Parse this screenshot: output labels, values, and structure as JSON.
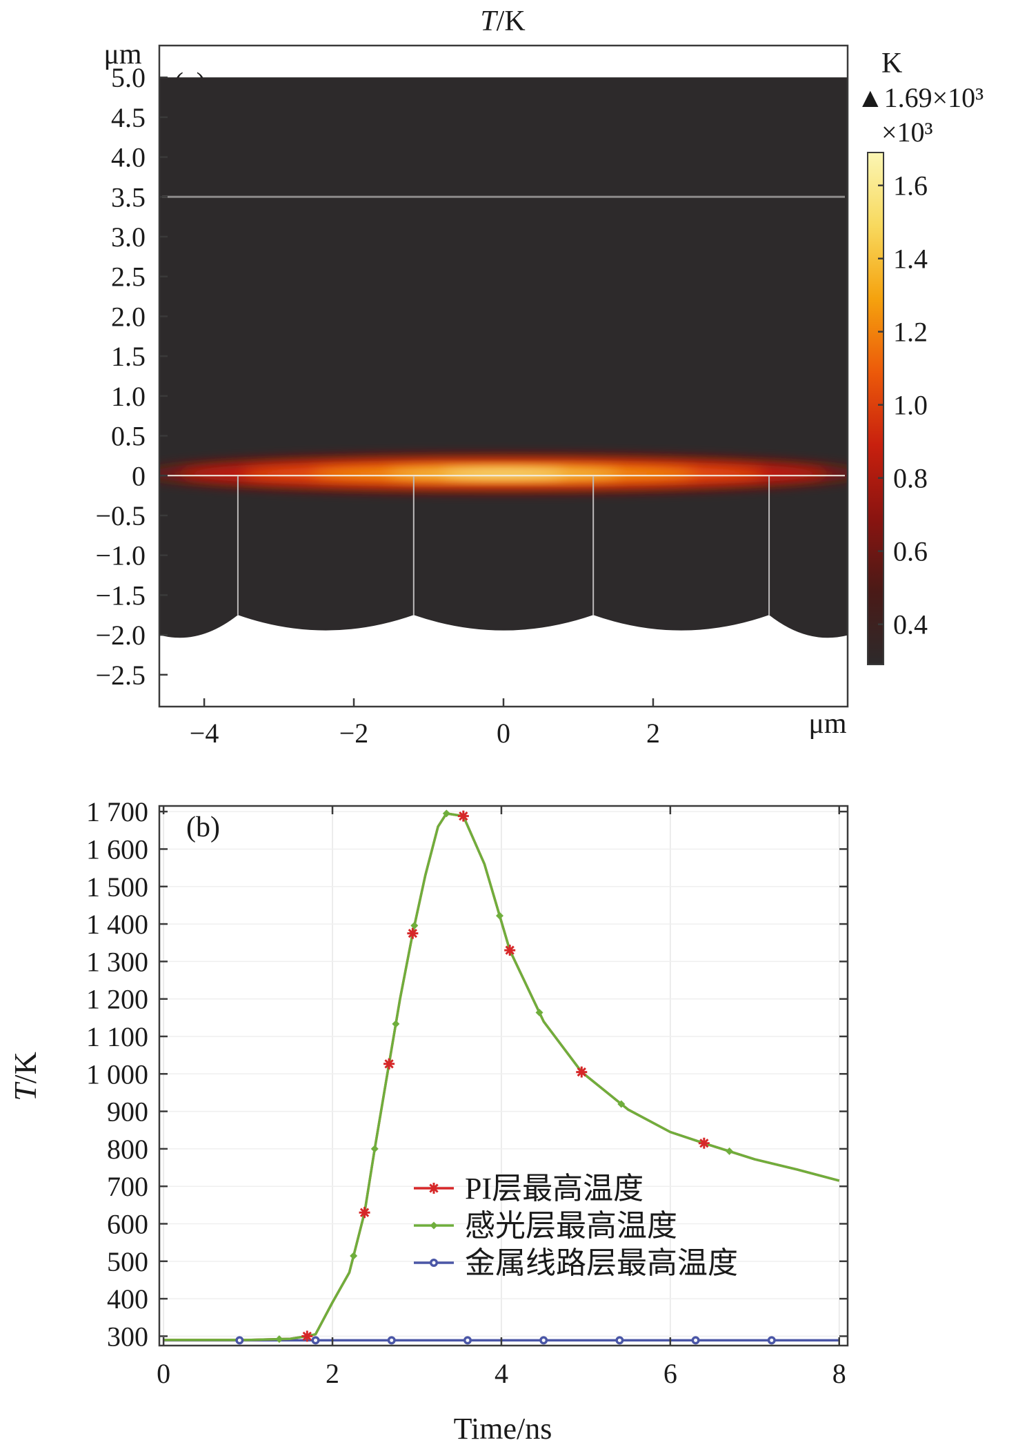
{
  "chart_data": [
    {
      "panel": "(a)",
      "type": "heatmap",
      "title": "T/K",
      "title_italic_part": "T",
      "title_rest": "/K",
      "x_unit_label": "μm",
      "y_unit_label": "μm",
      "xlim": [
        -4.6,
        4.6
      ],
      "ylim": [
        -2.9,
        5.4
      ],
      "x_ticks": [
        -4,
        -2,
        0,
        2
      ],
      "x_tick_labels": [
        "−4",
        "−2",
        "0",
        "2"
      ],
      "y_ticks": [
        5.0,
        4.5,
        4.0,
        3.5,
        3.0,
        2.5,
        2.0,
        1.5,
        1.0,
        0.5,
        0,
        -0.5,
        -1.0,
        -1.5,
        -2.0,
        -2.5
      ],
      "y_tick_labels": [
        "5.0",
        "4.5",
        "4.0",
        "3.5",
        "3.0",
        "2.5",
        "2.0",
        "1.5",
        "1.0",
        "0.5",
        "0",
        "−0.5",
        "−1.0",
        "−1.5",
        "−2.0",
        "−2.5"
      ],
      "domain": {
        "top_y": 5.0,
        "interface_y": 3.5,
        "hot_layer_y": 0,
        "divider_x": [
          -3.55,
          -1.2,
          1.2,
          3.55
        ],
        "bottom_peak_y": -1.75,
        "bottom_trough_y": -2.0
      },
      "colorbar": {
        "unit": "K",
        "max_label": "▲1.69×10³",
        "scale_label": "×10³",
        "range": [
          0.29,
          1.69
        ],
        "ticks": [
          1.6,
          1.4,
          1.2,
          1.0,
          0.8,
          0.6,
          0.4
        ],
        "tick_labels": [
          "1.6",
          "1.4",
          "1.2",
          "1.0",
          "0.8",
          "0.6",
          "0.4"
        ],
        "colormap": [
          "#2d2a2b",
          "#4a1a17",
          "#8a1410",
          "#c8200e",
          "#ec5a0a",
          "#f5a20e",
          "#f8d95e",
          "#fbf6b4"
        ]
      },
      "hot_spot": {
        "x_center": 0,
        "peak_T": 1.69,
        "background_T": 0.29
      }
    },
    {
      "panel": "(b)",
      "type": "line",
      "xlabel": "Time/ns",
      "ylabel_italic_part": "T",
      "ylabel_rest": "/K",
      "xlim": [
        -0.05,
        8.1
      ],
      "ylim": [
        275,
        1715
      ],
      "x_ticks": [
        0,
        2,
        4,
        6,
        8
      ],
      "x_tick_labels": [
        "0",
        "2",
        "4",
        "6",
        "8"
      ],
      "y_ticks": [
        300,
        400,
        500,
        600,
        700,
        800,
        900,
        1000,
        1100,
        1200,
        1300,
        1400,
        1500,
        1600,
        1700
      ],
      "y_tick_labels": [
        "300",
        "400",
        "500",
        "600",
        "700",
        "800",
        "900",
        "1 000",
        "1 100",
        "1 200",
        "1 300",
        "1 400",
        "1 500",
        "1 600",
        "1 700"
      ],
      "legend_position": "lower-right",
      "series": [
        {
          "name": "PI层最高温度",
          "color": "#d62728",
          "marker": "asterisk",
          "x": [
            0,
            0.5,
            1.0,
            1.5,
            1.7,
            1.8,
            2.0,
            2.2,
            2.38,
            2.5,
            2.65,
            2.8,
            2.95,
            3.1,
            3.25,
            3.35,
            3.55,
            3.8,
            4.1,
            4.5,
            4.95,
            5.5,
            6.0,
            6.4,
            7.0,
            7.5,
            8.0
          ],
          "y": [
            290,
            290,
            290,
            293,
            300,
            305,
            390,
            470,
            630,
            800,
            1000,
            1200,
            1375,
            1530,
            1660,
            1695,
            1688,
            1560,
            1330,
            1140,
            1005,
            905,
            845,
            815,
            772,
            745,
            715
          ],
          "marker_x": [
            1.7,
            2.38,
            2.67,
            2.95,
            3.55,
            4.1,
            4.95,
            6.4
          ]
        },
        {
          "name": "感光层最高温度",
          "color": "#6fae3c",
          "marker": "diamond",
          "x": [
            0,
            0.5,
            1.0,
            1.5,
            1.7,
            1.8,
            2.0,
            2.2,
            2.38,
            2.5,
            2.65,
            2.8,
            2.95,
            3.1,
            3.25,
            3.35,
            3.55,
            3.8,
            4.1,
            4.5,
            4.95,
            5.5,
            6.0,
            6.4,
            7.0,
            7.5,
            8.0
          ],
          "y": [
            290,
            290,
            290,
            293,
            300,
            305,
            390,
            470,
            630,
            800,
            1000,
            1200,
            1375,
            1530,
            1660,
            1695,
            1688,
            1560,
            1330,
            1140,
            1005,
            905,
            845,
            815,
            772,
            745,
            715
          ],
          "marker_x": [
            1.37,
            2.25,
            2.5,
            2.75,
            2.97,
            3.35,
            3.98,
            4.45,
            5.42,
            6.7
          ]
        },
        {
          "name": "金属线路层最高温度",
          "color": "#4a56a6",
          "marker": "star",
          "x": [
            0,
            8.0
          ],
          "y": [
            289,
            289
          ],
          "marker_x": [
            0.9,
            1.8,
            2.7,
            3.6,
            4.5,
            5.4,
            6.3,
            7.2
          ]
        }
      ]
    }
  ]
}
